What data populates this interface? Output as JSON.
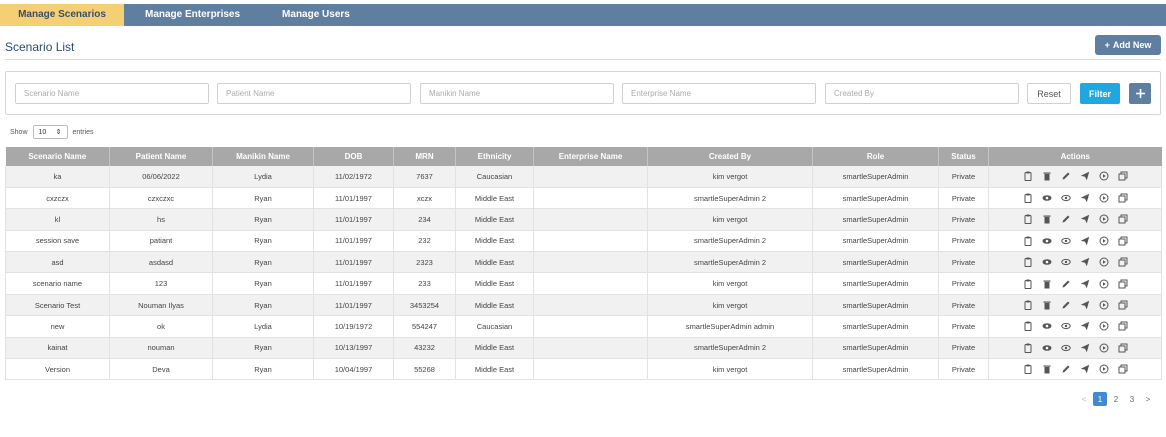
{
  "nav": {
    "tabs": [
      {
        "label": "Manage Scenarios",
        "active": true
      },
      {
        "label": "Manage Enterprises",
        "active": false
      },
      {
        "label": "Manage Users",
        "active": false
      }
    ]
  },
  "page": {
    "title": "Scenario List",
    "add_button": "Add New"
  },
  "filters": {
    "scenario_name_placeholder": "Scenario Name",
    "patient_name_placeholder": "Patient Name",
    "manikin_name_placeholder": "Manikin Name",
    "enterprise_name_placeholder": "Enterprise Name",
    "created_by_placeholder": "Created By",
    "reset_label": "Reset",
    "filter_label": "Filter"
  },
  "entries": {
    "show_label": "Show",
    "value": "10",
    "suffix_label": "entries"
  },
  "table": {
    "columns": [
      "Scenario Name",
      "Patient Name",
      "Manikin Name",
      "DOB",
      "MRN",
      "Ethnicity",
      "Enterprise Name",
      "Created By",
      "Role",
      "Status",
      "Actions"
    ],
    "rows": [
      {
        "scenario": "ka",
        "patient": "06/06/2022",
        "manikin": "Lydia",
        "dob": "11/02/1972",
        "mrn": "7637",
        "ethnicity": "Caucasian",
        "enterprise": "",
        "created_by": "kim vergot",
        "role": "smartleSuperAdmin",
        "status": "Private",
        "actions": [
          "clipboard",
          "trash",
          "pencil",
          "send",
          "play",
          "copy"
        ]
      },
      {
        "scenario": "cxzczx",
        "patient": "czxczxc",
        "manikin": "Ryan",
        "dob": "11/01/1997",
        "mrn": "xczx",
        "ethnicity": "Middle East",
        "enterprise": "",
        "created_by": "smartleSuperAdmin 2",
        "role": "smartleSuperAdmin",
        "status": "Private",
        "actions": [
          "clipboard",
          "eye",
          "eye-outline",
          "send",
          "play",
          "copy"
        ]
      },
      {
        "scenario": "kl",
        "patient": "hs",
        "manikin": "Ryan",
        "dob": "11/01/1997",
        "mrn": "234",
        "ethnicity": "Middle East",
        "enterprise": "",
        "created_by": "kim vergot",
        "role": "smartleSuperAdmin",
        "status": "Private",
        "actions": [
          "clipboard",
          "trash",
          "pencil",
          "send",
          "play",
          "copy"
        ]
      },
      {
        "scenario": "session save",
        "patient": "patiant",
        "manikin": "Ryan",
        "dob": "11/01/1997",
        "mrn": "232",
        "ethnicity": "Middle East",
        "enterprise": "",
        "created_by": "smartleSuperAdmin 2",
        "role": "smartleSuperAdmin",
        "status": "Private",
        "actions": [
          "clipboard",
          "eye",
          "eye-outline",
          "send",
          "play",
          "copy"
        ]
      },
      {
        "scenario": "asd",
        "patient": "asdasd",
        "manikin": "Ryan",
        "dob": "11/01/1997",
        "mrn": "2323",
        "ethnicity": "Middle East",
        "enterprise": "",
        "created_by": "smartleSuperAdmin 2",
        "role": "smartleSuperAdmin",
        "status": "Private",
        "actions": [
          "clipboard",
          "eye",
          "eye-outline",
          "send",
          "play",
          "copy"
        ]
      },
      {
        "scenario": "scenario name",
        "patient": "123",
        "manikin": "Ryan",
        "dob": "11/01/1997",
        "mrn": "233",
        "ethnicity": "Middle East",
        "enterprise": "",
        "created_by": "kim vergot",
        "role": "smartleSuperAdmin",
        "status": "Private",
        "actions": [
          "clipboard",
          "trash",
          "pencil",
          "send",
          "play",
          "copy"
        ]
      },
      {
        "scenario": "Scenario Test",
        "patient": "Nouman Ilyas",
        "manikin": "Ryan",
        "dob": "11/01/1997",
        "mrn": "3453254",
        "ethnicity": "Middle East",
        "enterprise": "",
        "created_by": "kim vergot",
        "role": "smartleSuperAdmin",
        "status": "Private",
        "actions": [
          "clipboard",
          "trash",
          "pencil",
          "send",
          "play",
          "copy"
        ]
      },
      {
        "scenario": "new",
        "patient": "ok",
        "manikin": "Lydia",
        "dob": "10/19/1972",
        "mrn": "554247",
        "ethnicity": "Caucasian",
        "enterprise": "",
        "created_by": "smartleSuperAdmin admin",
        "role": "smartleSuperAdmin",
        "status": "Private",
        "actions": [
          "clipboard",
          "eye",
          "eye-outline",
          "send",
          "play",
          "copy"
        ]
      },
      {
        "scenario": "kainat",
        "patient": "nouman",
        "manikin": "Ryan",
        "dob": "10/13/1997",
        "mrn": "43232",
        "ethnicity": "Middle East",
        "enterprise": "",
        "created_by": "smartleSuperAdmin 2",
        "role": "smartleSuperAdmin",
        "status": "Private",
        "actions": [
          "clipboard",
          "eye",
          "eye-outline",
          "send",
          "play",
          "copy"
        ]
      },
      {
        "scenario": "Version",
        "patient": "Deva",
        "manikin": "Ryan",
        "dob": "10/04/1997",
        "mrn": "55268",
        "ethnicity": "Middle East",
        "enterprise": "",
        "created_by": "kim vergot",
        "role": "smartleSuperAdmin",
        "status": "Private",
        "actions": [
          "clipboard",
          "trash",
          "pencil",
          "send",
          "play",
          "copy"
        ]
      }
    ]
  },
  "pagination": {
    "prev": "<",
    "pages": [
      "1",
      "2",
      "3"
    ],
    "current": "1",
    "next": ">"
  },
  "colors": {
    "nav_bg": "#5e7fa0",
    "active_tab": "#f5cf73",
    "filter_button": "#1ea7e1",
    "header_bg": "#a8a8a8",
    "page_active": "#3f8ad2"
  }
}
